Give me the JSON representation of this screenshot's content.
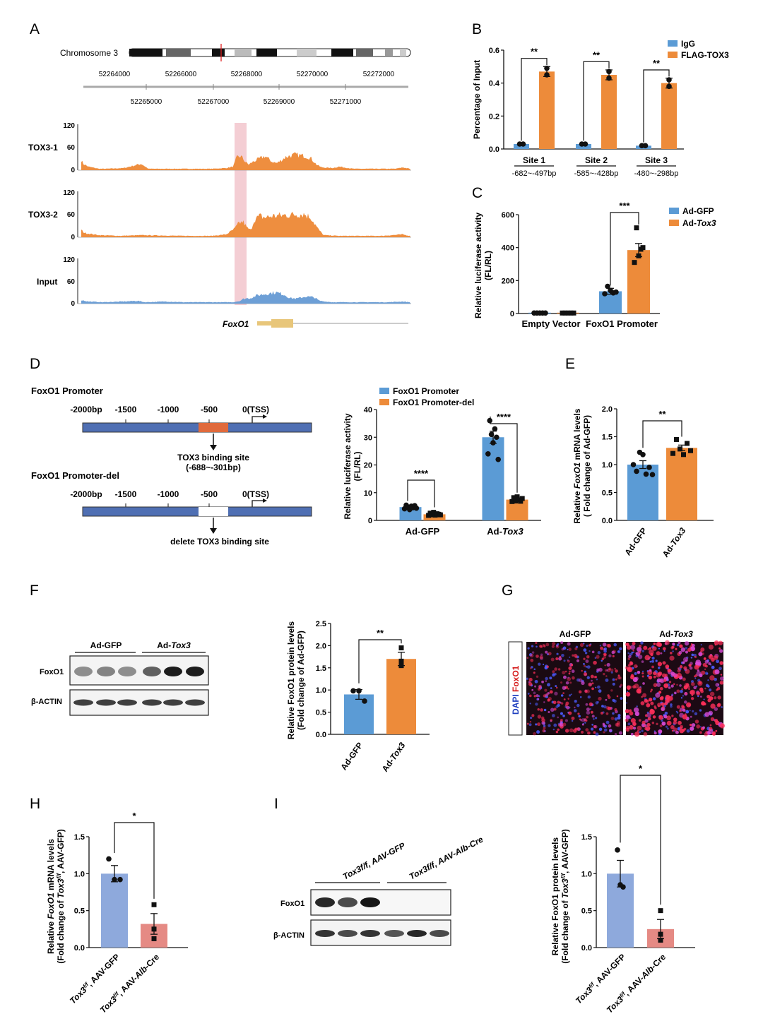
{
  "colors": {
    "blue": "#5b9bd5",
    "orange": "#ed8b3a",
    "track_orange": "#ee8e3f",
    "track_blue": "#6d9fd6",
    "pale_blue": "#8ea9dc",
    "salmon": "#e58a84",
    "highlight": "#f2c6cd"
  },
  "panels": {
    "A": {
      "label": "A",
      "chromosome_label": "Chromosome 3",
      "coords_top": [
        "52264000",
        "52266000",
        "52268000",
        "52270000",
        "52272000"
      ],
      "coords_bottom": [
        "52265000",
        "52267000",
        "52269000",
        "52271000"
      ],
      "tracks": [
        {
          "name": "TOX3-1",
          "ticks": [
            "120",
            "60",
            "0"
          ],
          "color": "orange"
        },
        {
          "name": "TOX3-2",
          "ticks": [
            "120",
            "60",
            "0"
          ],
          "color": "orange"
        },
        {
          "name": "Input",
          "ticks": [
            "120",
            "60",
            "0"
          ],
          "color": "blue"
        }
      ],
      "gene": "FoxO1"
    },
    "B": {
      "label": "B"
    },
    "C": {
      "label": "C"
    },
    "D": {
      "label": "D",
      "diagram": {
        "promoter_title": "FoxO1 Promoter",
        "promoter_del_title": "FoxO1 Promoter-del",
        "positions": [
          "-2000bp",
          "-1500",
          "-1000",
          "-500",
          "0(TSS)"
        ],
        "binding_label": "TOX3 binding site",
        "binding_range": "(-688~-301bp)",
        "delete_label": "delete TOX3 binding site"
      }
    },
    "E": {
      "label": "E"
    },
    "F": {
      "label": "F",
      "blot": {
        "group1": "Ad-GFP",
        "group2": "Ad-",
        "group2_italic": "Tox3",
        "row1": "FoxO1",
        "row2": "β-ACTIN"
      }
    },
    "G": {
      "label": "G",
      "col1": "Ad-GFP",
      "col2_prefix": "Ad-",
      "col2_italic": "Tox3",
      "stain_blue": "DAPI",
      "stain_red": "FoxO1"
    },
    "H": {
      "label": "H"
    },
    "I": {
      "label": "I",
      "blot": {
        "group1": "Tox3f/f, AAV-GFP",
        "group2": "Tox3f/f, AAV-Alb-Cre",
        "row1": "FoxO1",
        "row2": "β-ACTIN"
      }
    }
  },
  "chart_data": [
    {
      "panel": "B",
      "type": "bar",
      "ylabel": "Percentage of Input",
      "ylim": [
        0,
        0.6
      ],
      "yticks": [
        "0.0",
        "0.2",
        "0.4",
        "0.6"
      ],
      "categories": [
        "Site 1",
        "Site 2",
        "Site 3"
      ],
      "category_sublabels": [
        "-682~-497bp",
        "-585~-428bp",
        "-480~-298bp"
      ],
      "series": [
        {
          "name": "IgG",
          "values": [
            0.03,
            0.03,
            0.02
          ]
        },
        {
          "name": "FLAG-TOX3",
          "values": [
            0.47,
            0.45,
            0.4
          ]
        }
      ],
      "significance": [
        "**",
        "**",
        "**"
      ]
    },
    {
      "panel": "C",
      "type": "bar",
      "ylabel": "Relative luciferase activity (FL/RL)",
      "ylim": [
        0,
        600
      ],
      "yticks": [
        "0",
        "200",
        "400",
        "600"
      ],
      "categories": [
        "Empty Vector",
        "FoxO1 Promoter"
      ],
      "series": [
        {
          "name": "Ad-GFP",
          "values": [
            5,
            135
          ]
        },
        {
          "name": "Ad-Tox3",
          "values": [
            5,
            385
          ]
        }
      ],
      "significance": [
        "",
        "***"
      ]
    },
    {
      "panel": "D",
      "type": "bar",
      "ylabel": "Relative luciferase activity (FL/RL)",
      "ylim": [
        0,
        40
      ],
      "yticks": [
        "0",
        "10",
        "20",
        "30",
        "40"
      ],
      "categories": [
        "Ad-GFP",
        "Ad-Tox3"
      ],
      "series": [
        {
          "name": "FoxO1 Promoter",
          "values": [
            4.8,
            30
          ]
        },
        {
          "name": "FoxO1 Promoter-del",
          "values": [
            2.2,
            7.5
          ]
        }
      ],
      "significance": [
        "****",
        "****"
      ]
    },
    {
      "panel": "E",
      "type": "bar",
      "ylabel": "Relative FoxO1 mRNA levels (Fold change of Ad-GFP)",
      "ylim": [
        0,
        2.0
      ],
      "yticks": [
        "0.0",
        "0.5",
        "1.0",
        "1.5",
        "2.0"
      ],
      "categories": [
        "Ad-GFP",
        "Ad-Tox3"
      ],
      "values": [
        1.0,
        1.3
      ],
      "significance": "**"
    },
    {
      "panel": "F",
      "type": "bar",
      "ylabel": "Relative FoxO1 protein levels (Fold change of Ad-GFP)",
      "ylim": [
        0,
        2.5
      ],
      "yticks": [
        "0.0",
        "0.5",
        "1.0",
        "1.5",
        "2.0",
        "2.5"
      ],
      "categories": [
        "Ad-GFP",
        "Ad-Tox3"
      ],
      "values": [
        0.9,
        1.7
      ],
      "significance": "**"
    },
    {
      "panel": "H",
      "type": "bar",
      "ylabel": "Relative FoxO1 mRNA levels (Fold change of Tox3f/f, AAV-GFP)",
      "ylim": [
        0,
        1.5
      ],
      "yticks": [
        "0.0",
        "0.5",
        "1.0",
        "1.5"
      ],
      "categories": [
        "Tox3f/f, AAV-GFP",
        "Tox3f/f, AAV-Alb-Cre"
      ],
      "values": [
        1.0,
        0.32
      ],
      "significance": "*"
    },
    {
      "panel": "I",
      "type": "bar",
      "ylabel": "Relative FoxO1 protein levels (Fold change of Tox3f/f, AAV-GFP)",
      "ylim": [
        0,
        1.5
      ],
      "yticks": [
        "0.0",
        "0.5",
        "1.0",
        "1.5"
      ],
      "categories": [
        "Tox3f/f, AAV-GFP",
        "Tox3f/f, AAV-Alb-Cre"
      ],
      "values": [
        1.0,
        0.25
      ],
      "significance": "*"
    }
  ]
}
